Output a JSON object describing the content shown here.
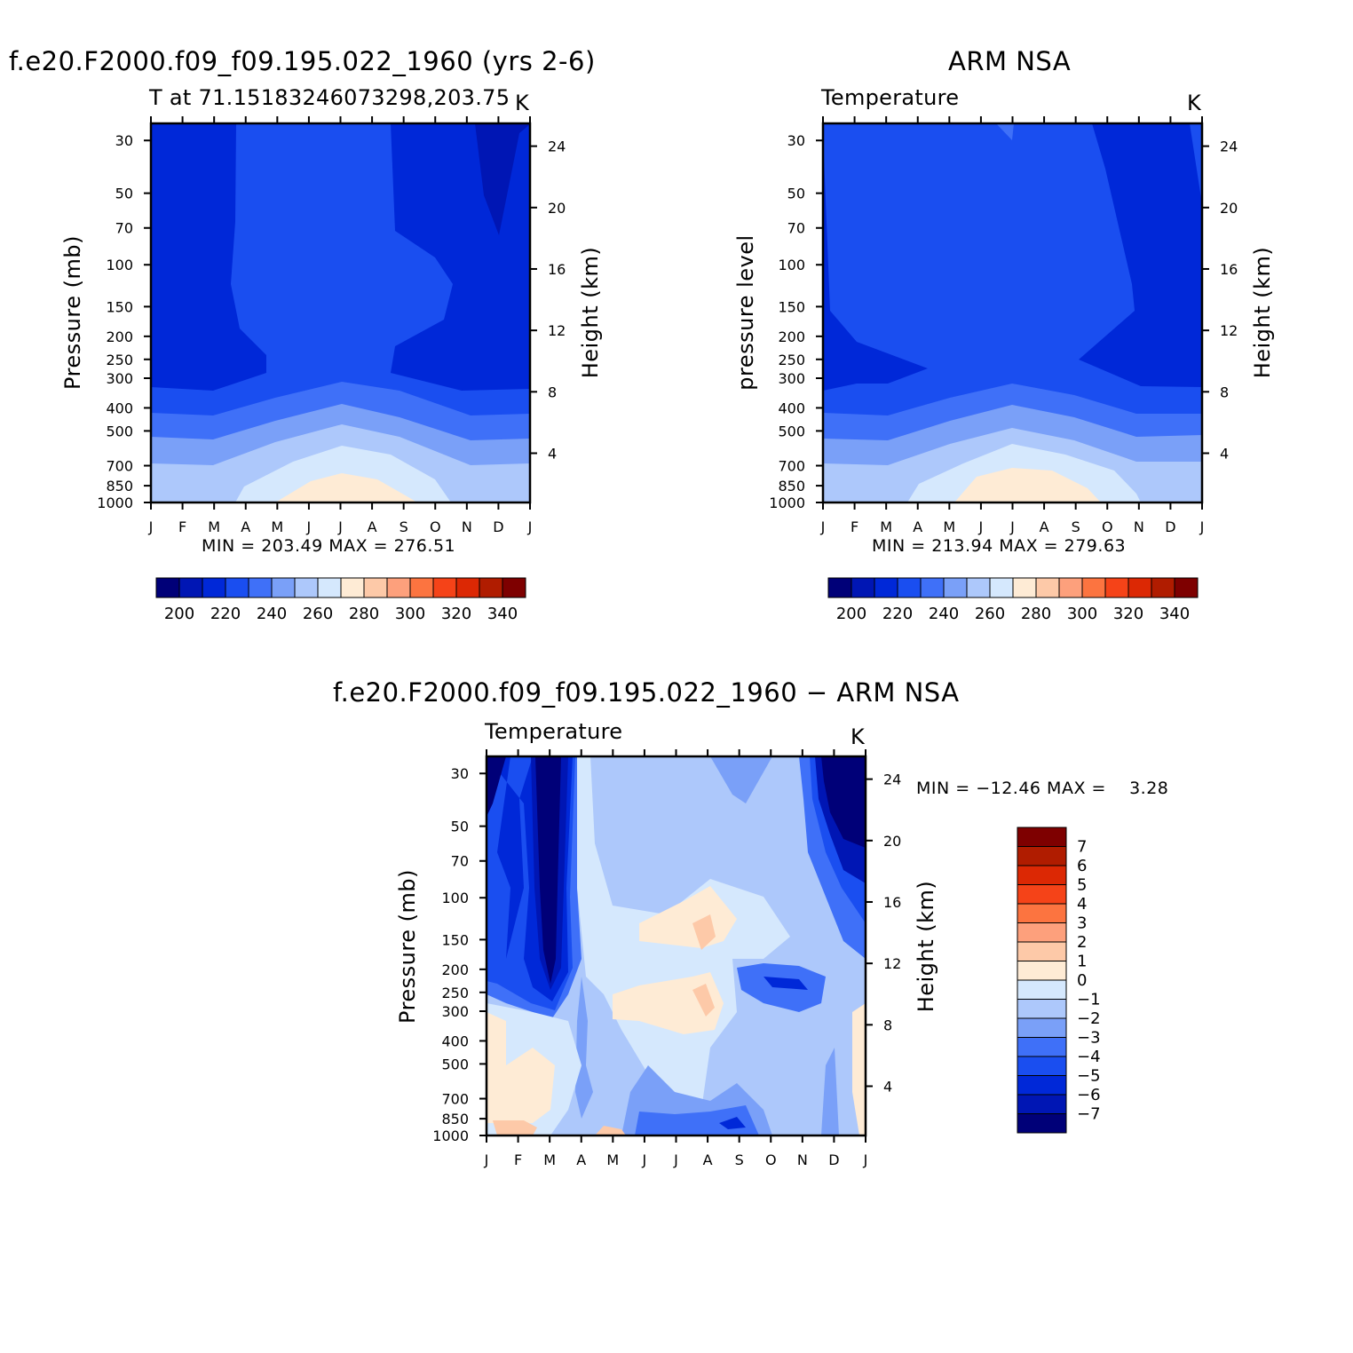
{
  "chart_data": [
    {
      "type": "heatmap",
      "title": "f.e20.F2000.f09_f09.195.022_1960 (yrs 2-6)",
      "subtitle_left": "T at 71.15183246073298,203.75",
      "subtitle_right": "K",
      "ylabel": "Pressure (mb)",
      "ylabel_right": "Height (km)",
      "x_ticks": [
        "J",
        "F",
        "M",
        "A",
        "M",
        "J",
        "J",
        "A",
        "S",
        "O",
        "N",
        "D",
        "J"
      ],
      "y_ticks": [
        "30",
        "50",
        "70",
        "100",
        "150",
        "200",
        "250",
        "300",
        "400",
        "500",
        "700",
        "850",
        "1000"
      ],
      "y_ticks_right": [
        "24",
        "20",
        "16",
        "12",
        "8",
        "4"
      ],
      "min_max_text": "MIN = 203.49 MAX = 276.51",
      "colorbar": {
        "orientation": "horizontal",
        "labels": [
          "200",
          "220",
          "240",
          "260",
          "280",
          "300",
          "320",
          "340"
        ],
        "colors": [
          "#000078",
          "#0016b4",
          "#0028d8",
          "#1a4ef0",
          "#3f70f8",
          "#7aa0f8",
          "#adc8fb",
          "#d5e8fd",
          "#feebd5",
          "#fdc9a8",
          "#fda07c",
          "#fc7440",
          "#f54318",
          "#dc2804",
          "#b01c00",
          "#7e0000"
        ]
      }
    },
    {
      "type": "heatmap",
      "title": "ARM NSA",
      "subtitle_left": "Temperature",
      "subtitle_right": "K",
      "ylabel": "pressure level",
      "ylabel_right": "Height (km)",
      "x_ticks": [
        "J",
        "F",
        "M",
        "A",
        "M",
        "J",
        "J",
        "A",
        "S",
        "O",
        "N",
        "D",
        "J"
      ],
      "y_ticks": [
        "30",
        "50",
        "70",
        "100",
        "150",
        "200",
        "250",
        "300",
        "400",
        "500",
        "700",
        "850",
        "1000"
      ],
      "y_ticks_right": [
        "24",
        "20",
        "16",
        "12",
        "8",
        "4"
      ],
      "min_max_text": "MIN = 213.94 MAX = 279.63",
      "colorbar": {
        "orientation": "horizontal",
        "labels": [
          "200",
          "220",
          "240",
          "260",
          "280",
          "300",
          "320",
          "340"
        ],
        "colors": [
          "#000078",
          "#0016b4",
          "#0028d8",
          "#1a4ef0",
          "#3f70f8",
          "#7aa0f8",
          "#adc8fb",
          "#d5e8fd",
          "#feebd5",
          "#fdc9a8",
          "#fda07c",
          "#fc7440",
          "#f54318",
          "#dc2804",
          "#b01c00",
          "#7e0000"
        ]
      }
    },
    {
      "type": "heatmap",
      "title": "f.e20.F2000.f09_f09.195.022_1960 − ARM NSA",
      "subtitle_left": "Temperature",
      "subtitle_right": "K",
      "ylabel": "Pressure (mb)",
      "ylabel_right": "Height (km)",
      "x_ticks": [
        "J",
        "F",
        "M",
        "A",
        "M",
        "J",
        "J",
        "A",
        "S",
        "O",
        "N",
        "D",
        "J"
      ],
      "y_ticks": [
        "30",
        "50",
        "70",
        "100",
        "150",
        "200",
        "250",
        "300",
        "400",
        "500",
        "700",
        "850",
        "1000"
      ],
      "y_ticks_right": [
        "24",
        "20",
        "16",
        "12",
        "8",
        "4"
      ],
      "min_max_text": "MIN = −12.46 MAX =    3.28",
      "colorbar": {
        "orientation": "vertical",
        "labels": [
          "7",
          "6",
          "5",
          "4",
          "3",
          "2",
          "1",
          "0",
          "−1",
          "−2",
          "−3",
          "−4",
          "−5",
          "−6",
          "−7"
        ],
        "colors": [
          "#7e0000",
          "#b01c00",
          "#dc2804",
          "#f54318",
          "#fc7440",
          "#fda07c",
          "#fdc9a8",
          "#feebd5",
          "#d5e8fd",
          "#adc8fb",
          "#7aa0f8",
          "#3f70f8",
          "#1a4ef0",
          "#0028d8",
          "#0016b4",
          "#000078"
        ]
      }
    }
  ]
}
